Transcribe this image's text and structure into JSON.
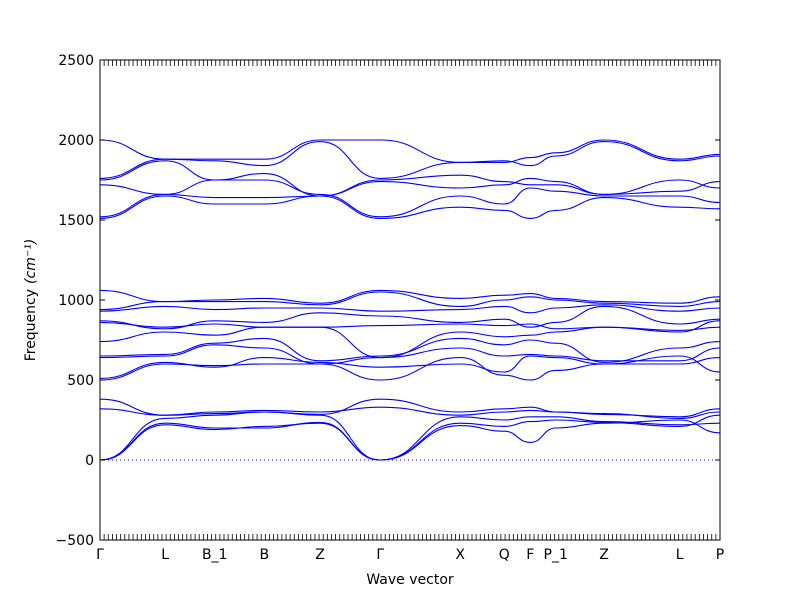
{
  "chart_data": {
    "type": "line",
    "xlabel": "Wave vector",
    "ylabel": "Frequency",
    "ylabel_unit": "(cm⁻¹)",
    "ylim": [
      -500,
      2500
    ],
    "yticks": [
      -500,
      0,
      500,
      1000,
      1500,
      2000,
      2500
    ],
    "grid": false,
    "xticks": [
      {
        "label": "Γ",
        "x": 0.0
      },
      {
        "label": "L",
        "x": 0.105
      },
      {
        "label": "B_1",
        "x": 0.185
      },
      {
        "label": "B",
        "x": 0.265
      },
      {
        "label": "Z",
        "x": 0.355
      },
      {
        "label": "Γ",
        "x": 0.452
      },
      {
        "label": "X",
        "x": 0.581
      },
      {
        "label": "Q",
        "x": 0.652
      },
      {
        "label": "F",
        "x": 0.694
      },
      {
        "label": "P_1",
        "x": 0.735
      },
      {
        "label": "Z",
        "x": 0.813
      },
      {
        "label": "L",
        "x": 0.935
      },
      {
        "label": "P",
        "x": 1.0
      }
    ],
    "reference_line": {
      "y": 0,
      "style": "dotted"
    },
    "line_color": "#0000ff",
    "series": [
      {
        "values": [
          [
            0,
            0
          ],
          [
            0.105,
            230
          ],
          [
            0.185,
            200
          ],
          [
            0.265,
            200
          ],
          [
            0.355,
            235
          ],
          [
            0.452,
            0
          ],
          [
            0.581,
            270
          ],
          [
            0.652,
            250
          ],
          [
            0.694,
            270
          ],
          [
            0.735,
            270
          ],
          [
            0.813,
            240
          ],
          [
            0.935,
            220
          ],
          [
            1.0,
            230
          ]
        ]
      },
      {
        "values": [
          [
            0,
            0
          ],
          [
            0.105,
            220
          ],
          [
            0.185,
            190
          ],
          [
            0.265,
            210
          ],
          [
            0.355,
            230
          ],
          [
            0.452,
            0
          ],
          [
            0.581,
            215
          ],
          [
            0.652,
            180
          ],
          [
            0.694,
            110
          ],
          [
            0.735,
            200
          ],
          [
            0.813,
            230
          ],
          [
            0.935,
            250
          ],
          [
            1.0,
            170
          ]
        ]
      },
      {
        "values": [
          [
            0,
            0
          ],
          [
            0.105,
            260
          ],
          [
            0.185,
            280
          ],
          [
            0.265,
            300
          ],
          [
            0.355,
            280
          ],
          [
            0.452,
            0
          ],
          [
            0.581,
            230
          ],
          [
            0.652,
            210
          ],
          [
            0.694,
            240
          ],
          [
            0.735,
            250
          ],
          [
            0.813,
            235
          ],
          [
            0.935,
            210
          ],
          [
            1.0,
            280
          ]
        ]
      },
      {
        "values": [
          [
            0,
            320
          ],
          [
            0.105,
            280
          ],
          [
            0.185,
            290
          ],
          [
            0.265,
            300
          ],
          [
            0.355,
            285
          ],
          [
            0.452,
            380
          ],
          [
            0.581,
            300
          ],
          [
            0.652,
            320
          ],
          [
            0.694,
            330
          ],
          [
            0.735,
            300
          ],
          [
            0.813,
            290
          ],
          [
            0.935,
            260
          ],
          [
            1.0,
            300
          ]
        ]
      },
      {
        "values": [
          [
            0,
            380
          ],
          [
            0.105,
            280
          ],
          [
            0.185,
            300
          ],
          [
            0.265,
            310
          ],
          [
            0.355,
            300
          ],
          [
            0.452,
            330
          ],
          [
            0.581,
            280
          ],
          [
            0.652,
            300
          ],
          [
            0.694,
            310
          ],
          [
            0.735,
            300
          ],
          [
            0.813,
            285
          ],
          [
            0.935,
            270
          ],
          [
            1.0,
            320
          ]
        ]
      },
      {
        "values": [
          [
            0,
            500
          ],
          [
            0.105,
            600
          ],
          [
            0.185,
            590
          ],
          [
            0.265,
            600
          ],
          [
            0.355,
            600
          ],
          [
            0.452,
            500
          ],
          [
            0.581,
            640
          ],
          [
            0.652,
            530
          ],
          [
            0.694,
            500
          ],
          [
            0.735,
            560
          ],
          [
            0.813,
            600
          ],
          [
            0.935,
            650
          ],
          [
            1.0,
            550
          ]
        ]
      },
      {
        "values": [
          [
            0,
            510
          ],
          [
            0.105,
            610
          ],
          [
            0.185,
            580
          ],
          [
            0.265,
            640
          ],
          [
            0.355,
            610
          ],
          [
            0.452,
            580
          ],
          [
            0.581,
            600
          ],
          [
            0.652,
            550
          ],
          [
            0.694,
            650
          ],
          [
            0.735,
            640
          ],
          [
            0.813,
            600
          ],
          [
            0.935,
            600
          ],
          [
            1.0,
            640
          ]
        ]
      },
      {
        "values": [
          [
            0,
            640
          ],
          [
            0.105,
            650
          ],
          [
            0.185,
            720
          ],
          [
            0.265,
            700
          ],
          [
            0.355,
            600
          ],
          [
            0.452,
            640
          ],
          [
            0.581,
            700
          ],
          [
            0.652,
            650
          ],
          [
            0.694,
            660
          ],
          [
            0.735,
            650
          ],
          [
            0.813,
            620
          ],
          [
            0.935,
            620
          ],
          [
            1.0,
            700
          ]
        ]
      },
      {
        "values": [
          [
            0,
            650
          ],
          [
            0.105,
            660
          ],
          [
            0.185,
            730
          ],
          [
            0.265,
            760
          ],
          [
            0.355,
            620
          ],
          [
            0.452,
            650
          ],
          [
            0.581,
            760
          ],
          [
            0.652,
            720
          ],
          [
            0.694,
            750
          ],
          [
            0.735,
            730
          ],
          [
            0.813,
            610
          ],
          [
            0.935,
            700
          ],
          [
            1.0,
            740
          ]
        ]
      },
      {
        "values": [
          [
            0,
            740
          ],
          [
            0.105,
            800
          ],
          [
            0.185,
            780
          ],
          [
            0.265,
            830
          ],
          [
            0.355,
            830
          ],
          [
            0.452,
            640
          ],
          [
            0.581,
            800
          ],
          [
            0.652,
            770
          ],
          [
            0.694,
            780
          ],
          [
            0.735,
            800
          ],
          [
            0.813,
            830
          ],
          [
            0.935,
            800
          ],
          [
            1.0,
            870
          ]
        ]
      },
      {
        "values": [
          [
            0,
            860
          ],
          [
            0.105,
            830
          ],
          [
            0.185,
            850
          ],
          [
            0.265,
            830
          ],
          [
            0.355,
            830
          ],
          [
            0.452,
            840
          ],
          [
            0.581,
            850
          ],
          [
            0.652,
            840
          ],
          [
            0.694,
            850
          ],
          [
            0.735,
            820
          ],
          [
            0.813,
            830
          ],
          [
            0.935,
            810
          ],
          [
            1.0,
            830
          ]
        ]
      },
      {
        "values": [
          [
            0,
            870
          ],
          [
            0.105,
            820
          ],
          [
            0.185,
            870
          ],
          [
            0.265,
            860
          ],
          [
            0.355,
            920
          ],
          [
            0.452,
            900
          ],
          [
            0.581,
            860
          ],
          [
            0.652,
            880
          ],
          [
            0.694,
            830
          ],
          [
            0.735,
            860
          ],
          [
            0.813,
            960
          ],
          [
            0.935,
            850
          ],
          [
            1.0,
            880
          ]
        ]
      },
      {
        "values": [
          [
            0,
            930
          ],
          [
            0.105,
            960
          ],
          [
            0.185,
            940
          ],
          [
            0.265,
            950
          ],
          [
            0.355,
            950
          ],
          [
            0.452,
            930
          ],
          [
            0.581,
            940
          ],
          [
            0.652,
            960
          ],
          [
            0.694,
            920
          ],
          [
            0.735,
            950
          ],
          [
            0.813,
            970
          ],
          [
            0.935,
            930
          ],
          [
            1.0,
            950
          ]
        ]
      },
      {
        "values": [
          [
            0,
            940
          ],
          [
            0.105,
            990
          ],
          [
            0.185,
            990
          ],
          [
            0.265,
            990
          ],
          [
            0.355,
            970
          ],
          [
            0.452,
            1050
          ],
          [
            0.581,
            960
          ],
          [
            0.652,
            1000
          ],
          [
            0.694,
            1020
          ],
          [
            0.735,
            1000
          ],
          [
            0.813,
            980
          ],
          [
            0.935,
            960
          ],
          [
            1.0,
            990
          ]
        ]
      },
      {
        "values": [
          [
            0,
            1060
          ],
          [
            0.105,
            990
          ],
          [
            0.185,
            1000
          ],
          [
            0.265,
            1010
          ],
          [
            0.355,
            980
          ],
          [
            0.452,
            1060
          ],
          [
            0.581,
            1010
          ],
          [
            0.652,
            1030
          ],
          [
            0.694,
            1040
          ],
          [
            0.735,
            1010
          ],
          [
            0.813,
            990
          ],
          [
            0.935,
            980
          ],
          [
            1.0,
            1020
          ]
        ]
      },
      {
        "values": [
          [
            0,
            1510
          ],
          [
            0.105,
            1650
          ],
          [
            0.185,
            1600
          ],
          [
            0.265,
            1600
          ],
          [
            0.355,
            1650
          ],
          [
            0.452,
            1510
          ],
          [
            0.581,
            1580
          ],
          [
            0.652,
            1560
          ],
          [
            0.694,
            1510
          ],
          [
            0.735,
            1560
          ],
          [
            0.813,
            1640
          ],
          [
            0.935,
            1580
          ],
          [
            1.0,
            1570
          ]
        ]
      },
      {
        "values": [
          [
            0,
            1520
          ],
          [
            0.105,
            1660
          ],
          [
            0.185,
            1750
          ],
          [
            0.265,
            1750
          ],
          [
            0.355,
            1660
          ],
          [
            0.452,
            1520
          ],
          [
            0.581,
            1650
          ],
          [
            0.652,
            1600
          ],
          [
            0.694,
            1700
          ],
          [
            0.735,
            1680
          ],
          [
            0.813,
            1650
          ],
          [
            0.935,
            1650
          ],
          [
            1.0,
            1610
          ]
        ]
      },
      {
        "values": [
          [
            0,
            1720
          ],
          [
            0.105,
            1660
          ],
          [
            0.185,
            1640
          ],
          [
            0.265,
            1640
          ],
          [
            0.355,
            1650
          ],
          [
            0.452,
            1740
          ],
          [
            0.581,
            1700
          ],
          [
            0.652,
            1720
          ],
          [
            0.694,
            1760
          ],
          [
            0.735,
            1740
          ],
          [
            0.813,
            1660
          ],
          [
            0.935,
            1750
          ],
          [
            1.0,
            1700
          ]
        ]
      },
      {
        "values": [
          [
            0,
            1750
          ],
          [
            0.105,
            1870
          ],
          [
            0.185,
            1750
          ],
          [
            0.265,
            1790
          ],
          [
            0.355,
            1650
          ],
          [
            0.452,
            1750
          ],
          [
            0.581,
            1780
          ],
          [
            0.652,
            1740
          ],
          [
            0.694,
            1720
          ],
          [
            0.735,
            1720
          ],
          [
            0.813,
            1660
          ],
          [
            0.935,
            1680
          ],
          [
            1.0,
            1740
          ]
        ]
      },
      {
        "values": [
          [
            0,
            1760
          ],
          [
            0.105,
            1880
          ],
          [
            0.185,
            1870
          ],
          [
            0.265,
            1840
          ],
          [
            0.355,
            1990
          ],
          [
            0.452,
            1760
          ],
          [
            0.581,
            1860
          ],
          [
            0.652,
            1870
          ],
          [
            0.694,
            1840
          ],
          [
            0.735,
            1900
          ],
          [
            0.813,
            1990
          ],
          [
            0.935,
            1870
          ],
          [
            1.0,
            1900
          ]
        ]
      },
      {
        "values": [
          [
            0,
            2000
          ],
          [
            0.105,
            1880
          ],
          [
            0.185,
            1880
          ],
          [
            0.265,
            1880
          ],
          [
            0.355,
            2000
          ],
          [
            0.452,
            2000
          ],
          [
            0.581,
            1860
          ],
          [
            0.652,
            1860
          ],
          [
            0.694,
            1890
          ],
          [
            0.735,
            1920
          ],
          [
            0.813,
            2000
          ],
          [
            0.935,
            1880
          ],
          [
            1.0,
            1910
          ]
        ]
      }
    ]
  }
}
